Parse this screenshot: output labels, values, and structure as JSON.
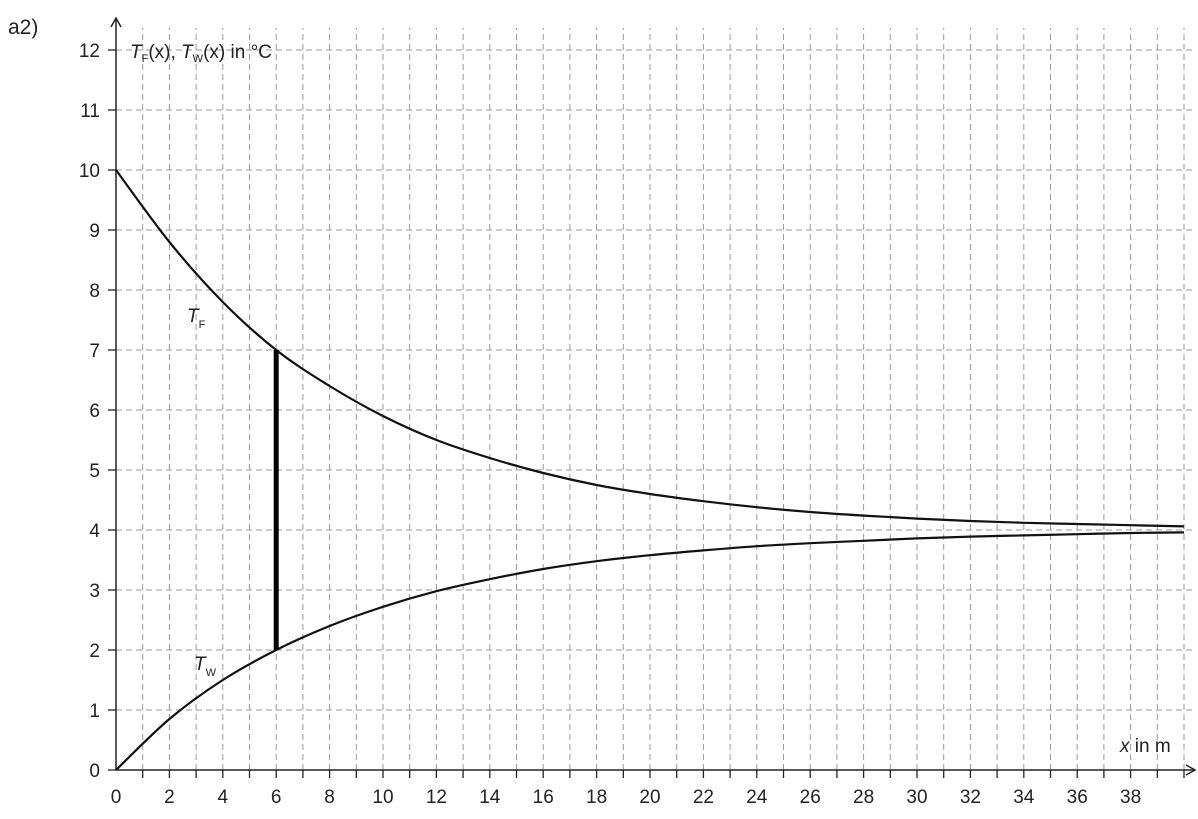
{
  "panel_label": "a2)",
  "chart_data": {
    "type": "line",
    "ylabel": {
      "T1": "T",
      "s1": "F",
      "a1": "(x), ",
      "T2": "T",
      "s2": "W",
      "a2": "(x) in °C"
    },
    "xlabel": {
      "var": "x",
      "rest": " in m"
    },
    "xlim": [
      0,
      40
    ],
    "ylim": [
      0,
      12.6
    ],
    "x_ticks_labeled": [
      0,
      2,
      4,
      6,
      8,
      10,
      12,
      14,
      16,
      18,
      20,
      22,
      24,
      26,
      28,
      30,
      32,
      34,
      36,
      38
    ],
    "y_ticks_labeled": [
      0,
      1,
      2,
      3,
      4,
      5,
      6,
      7,
      8,
      9,
      10,
      11,
      12
    ],
    "grid": true,
    "series": [
      {
        "name": "T_F",
        "label_T": "T",
        "label_sub": "F",
        "x": [
          0,
          2,
          4,
          6,
          8,
          10,
          12,
          14,
          16,
          18,
          20,
          22,
          24,
          26,
          28,
          30,
          32,
          34,
          36,
          38,
          40
        ],
        "y": [
          10,
          8.8,
          7.8,
          7.0,
          6.4,
          5.9,
          5.5,
          5.2,
          4.95,
          4.75,
          4.6,
          4.48,
          4.38,
          4.3,
          4.24,
          4.19,
          4.15,
          4.12,
          4.1,
          4.08,
          4.06
        ]
      },
      {
        "name": "T_W",
        "label_T": "T",
        "label_sub": "W",
        "x": [
          0,
          2,
          4,
          6,
          8,
          10,
          12,
          14,
          16,
          18,
          20,
          22,
          24,
          26,
          28,
          30,
          32,
          34,
          36,
          38,
          40
        ],
        "y": [
          0,
          0.85,
          1.5,
          2.0,
          2.4,
          2.72,
          2.98,
          3.18,
          3.35,
          3.48,
          3.58,
          3.66,
          3.73,
          3.78,
          3.82,
          3.86,
          3.89,
          3.91,
          3.93,
          3.95,
          3.96
        ]
      }
    ],
    "segment": {
      "x": 6,
      "y1": 2,
      "y2": 7
    }
  }
}
